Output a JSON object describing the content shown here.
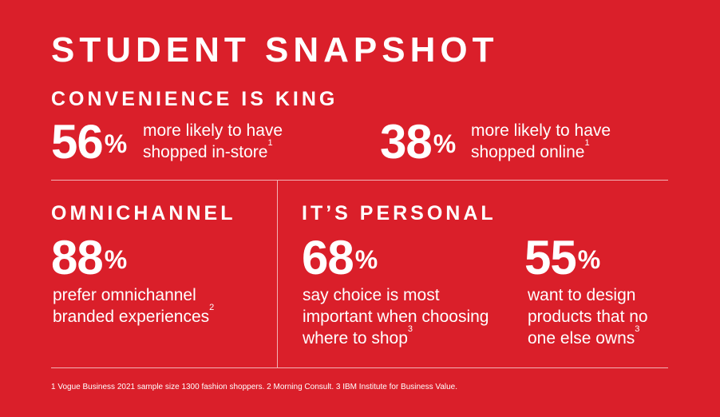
{
  "title": "STUDENT SNAPSHOT",
  "sections": {
    "convenience": {
      "heading": "CONVENIENCE IS KING",
      "stats": [
        {
          "value": "56",
          "unit": "%",
          "line1": "more likely to have",
          "line2": "shopped in-store",
          "note": "1"
        },
        {
          "value": "38",
          "unit": "%",
          "line1": "more likely to have",
          "line2": "shopped online",
          "note": "1"
        }
      ]
    },
    "omnichannel": {
      "heading": "OMNICHANNEL",
      "stat": {
        "value": "88",
        "unit": "%",
        "line1": "prefer omnichannel",
        "line2": "branded experiences",
        "note": "2"
      }
    },
    "personal": {
      "heading": "IT’S PERSONAL",
      "stats": [
        {
          "value": "68",
          "unit": "%",
          "line1": "say choice is most",
          "line2": "important when choosing",
          "line3": "where to shop",
          "note": "3"
        },
        {
          "value": "55",
          "unit": "%",
          "line1": "want to design",
          "line2": "products that no",
          "line3": "one else owns",
          "note": "3"
        }
      ]
    }
  },
  "footnote": "1 Vogue Business 2021 sample size 1300 fashion shoppers. 2 Morning Consult.  3 IBM Institute for Business Value.",
  "colors": {
    "background": "#da1f2a",
    "text": "#ffffff",
    "divider": "#f3b3b6"
  }
}
